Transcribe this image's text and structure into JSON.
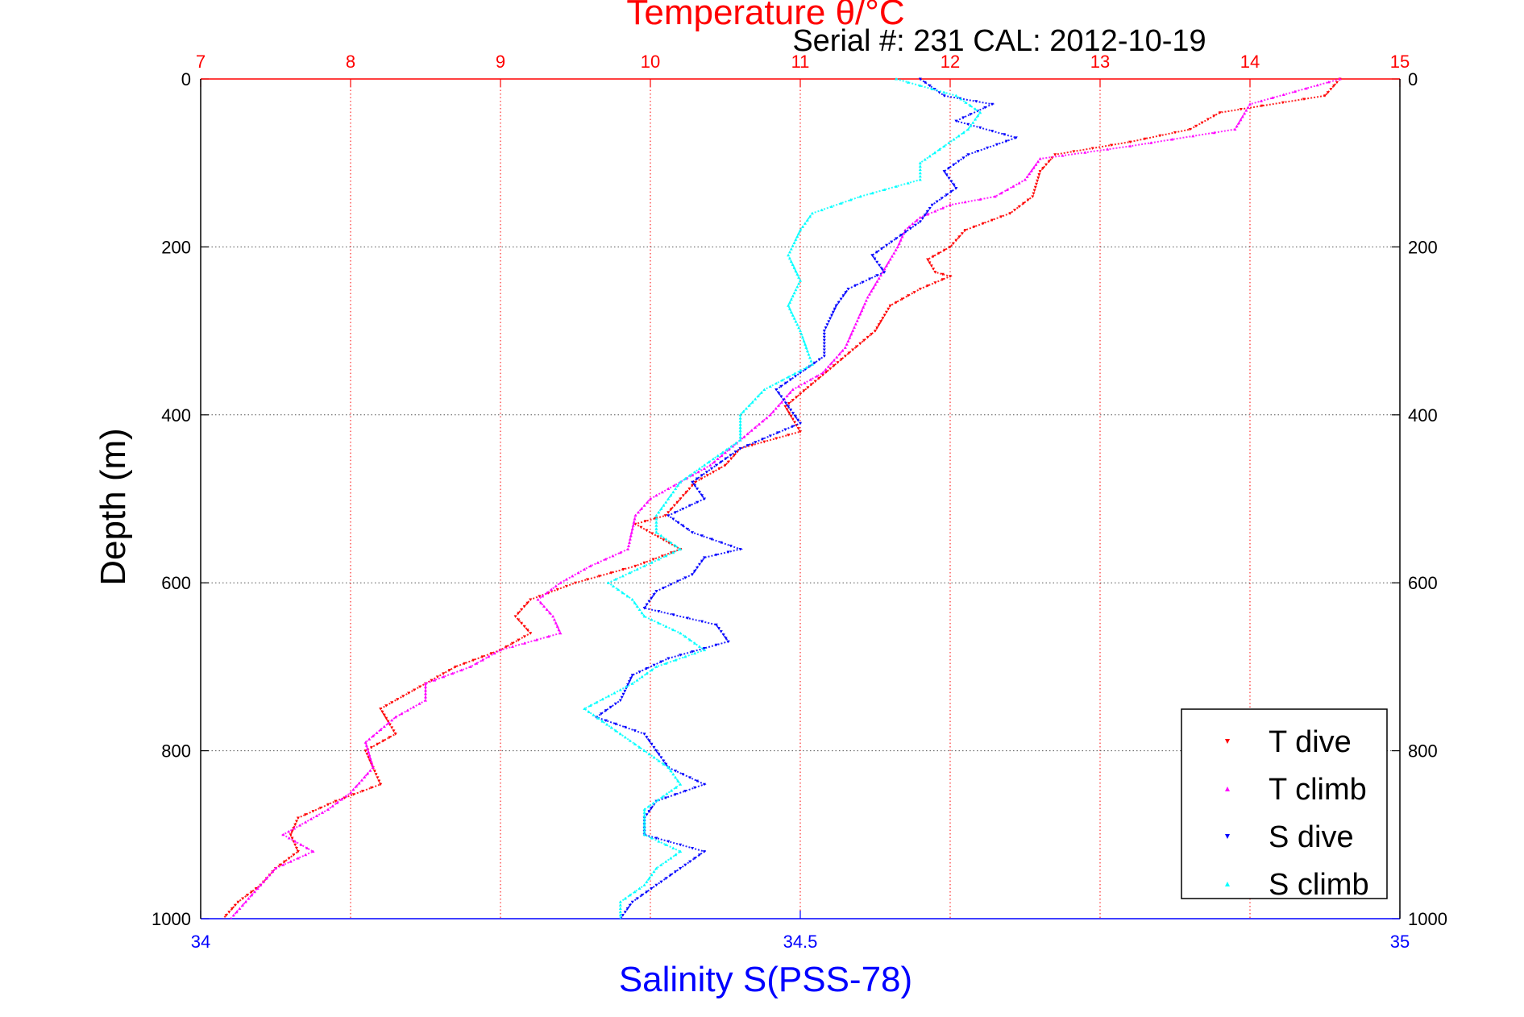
{
  "chart_data": {
    "type": "scatter",
    "title": "Temperature θ/°C",
    "subtitle": "Serial #: 231  CAL: 2012-10-19",
    "ylabel": "Depth (m)",
    "xlabel_bottom": "Salinity S(PSS-78)",
    "xlabel_top": "Temperature θ/°C",
    "ylim": [
      0,
      1000
    ],
    "y_inverted": true,
    "y_ticks": [
      "0",
      "200",
      "400",
      "600",
      "800",
      "1000"
    ],
    "x_top_lim": [
      7,
      15
    ],
    "x_top_ticks": [
      "7",
      "8",
      "9",
      "10",
      "11",
      "12",
      "13",
      "14",
      "15"
    ],
    "x_bottom_lim": [
      34,
      35
    ],
    "x_bottom_ticks": [
      "34",
      "34.5",
      "35"
    ],
    "grid": true,
    "legend_position": "bottom-right",
    "colors": {
      "temp_axis": "#ff0000",
      "sal_axis": "#0000ff",
      "t_dive": "#ff0000",
      "t_climb": "#ff00ff",
      "s_dive": "#0000ff",
      "s_climb": "#00ffff"
    },
    "series": [
      {
        "name": "T dive",
        "axis": "temperature",
        "color": "#ff0000",
        "points": [
          [
            14.6,
            0
          ],
          [
            14.5,
            20
          ],
          [
            13.8,
            40
          ],
          [
            13.6,
            60
          ],
          [
            13.2,
            75
          ],
          [
            12.7,
            90
          ],
          [
            12.6,
            110
          ],
          [
            12.55,
            140
          ],
          [
            12.4,
            160
          ],
          [
            12.1,
            180
          ],
          [
            12.0,
            200
          ],
          [
            11.85,
            215
          ],
          [
            11.9,
            230
          ],
          [
            12.0,
            235
          ],
          [
            11.8,
            250
          ],
          [
            11.6,
            270
          ],
          [
            11.5,
            300
          ],
          [
            11.3,
            330
          ],
          [
            11.1,
            360
          ],
          [
            10.9,
            390
          ],
          [
            11.0,
            420
          ],
          [
            10.6,
            440
          ],
          [
            10.5,
            460
          ],
          [
            10.3,
            480
          ],
          [
            10.2,
            500
          ],
          [
            10.1,
            520
          ],
          [
            9.9,
            530
          ],
          [
            10.2,
            560
          ],
          [
            9.9,
            580
          ],
          [
            9.5,
            600
          ],
          [
            9.2,
            620
          ],
          [
            9.1,
            640
          ],
          [
            9.2,
            660
          ],
          [
            9.0,
            680
          ],
          [
            8.7,
            700
          ],
          [
            8.5,
            720
          ],
          [
            8.2,
            750
          ],
          [
            8.3,
            780
          ],
          [
            8.1,
            800
          ],
          [
            8.2,
            840
          ],
          [
            7.9,
            860
          ],
          [
            7.65,
            880
          ],
          [
            7.6,
            900
          ],
          [
            7.65,
            920
          ],
          [
            7.5,
            940
          ],
          [
            7.4,
            960
          ],
          [
            7.25,
            980
          ],
          [
            7.15,
            1000
          ]
        ]
      },
      {
        "name": "T climb",
        "axis": "temperature",
        "color": "#ff00ff",
        "points": [
          [
            14.6,
            0
          ],
          [
            14.0,
            30
          ],
          [
            13.9,
            60
          ],
          [
            13.2,
            80
          ],
          [
            12.6,
            95
          ],
          [
            12.5,
            120
          ],
          [
            12.3,
            140
          ],
          [
            12.0,
            150
          ],
          [
            11.8,
            165
          ],
          [
            11.7,
            180
          ],
          [
            11.65,
            200
          ],
          [
            11.55,
            230
          ],
          [
            11.45,
            260
          ],
          [
            11.4,
            280
          ],
          [
            11.3,
            320
          ],
          [
            11.15,
            350
          ],
          [
            10.95,
            370
          ],
          [
            10.8,
            400
          ],
          [
            10.6,
            430
          ],
          [
            10.4,
            460
          ],
          [
            10.2,
            480
          ],
          [
            10.0,
            500
          ],
          [
            9.9,
            520
          ],
          [
            9.85,
            560
          ],
          [
            9.6,
            580
          ],
          [
            9.4,
            600
          ],
          [
            9.25,
            620
          ],
          [
            9.35,
            640
          ],
          [
            9.4,
            660
          ],
          [
            9.0,
            680
          ],
          [
            8.8,
            700
          ],
          [
            8.5,
            720
          ],
          [
            8.5,
            740
          ],
          [
            8.3,
            760
          ],
          [
            8.1,
            790
          ],
          [
            8.15,
            820
          ],
          [
            8.0,
            850
          ],
          [
            7.85,
            870
          ],
          [
            7.55,
            900
          ],
          [
            7.75,
            920
          ],
          [
            7.5,
            940
          ],
          [
            7.4,
            960
          ],
          [
            7.3,
            980
          ],
          [
            7.2,
            1000
          ]
        ]
      },
      {
        "name": "S dive",
        "axis": "salinity",
        "color": "#0000ff",
        "points": [
          [
            34.6,
            0
          ],
          [
            34.62,
            20
          ],
          [
            34.66,
            30
          ],
          [
            34.63,
            50
          ],
          [
            34.68,
            70
          ],
          [
            34.64,
            90
          ],
          [
            34.62,
            110
          ],
          [
            34.63,
            130
          ],
          [
            34.61,
            150
          ],
          [
            34.6,
            170
          ],
          [
            34.58,
            190
          ],
          [
            34.56,
            210
          ],
          [
            34.57,
            230
          ],
          [
            34.54,
            250
          ],
          [
            34.53,
            270
          ],
          [
            34.52,
            300
          ],
          [
            34.52,
            330
          ],
          [
            34.5,
            350
          ],
          [
            34.48,
            370
          ],
          [
            34.49,
            390
          ],
          [
            34.5,
            410
          ],
          [
            34.45,
            440
          ],
          [
            34.43,
            460
          ],
          [
            34.41,
            480
          ],
          [
            34.42,
            500
          ],
          [
            34.39,
            520
          ],
          [
            34.41,
            540
          ],
          [
            34.45,
            560
          ],
          [
            34.42,
            570
          ],
          [
            34.41,
            590
          ],
          [
            34.38,
            610
          ],
          [
            34.37,
            630
          ],
          [
            34.43,
            650
          ],
          [
            34.44,
            670
          ],
          [
            34.39,
            690
          ],
          [
            34.36,
            710
          ],
          [
            34.35,
            740
          ],
          [
            34.33,
            760
          ],
          [
            34.37,
            780
          ],
          [
            34.38,
            800
          ],
          [
            34.39,
            820
          ],
          [
            34.42,
            840
          ],
          [
            34.38,
            860
          ],
          [
            34.37,
            880
          ],
          [
            34.37,
            900
          ],
          [
            34.42,
            920
          ],
          [
            34.4,
            940
          ],
          [
            34.38,
            960
          ],
          [
            34.36,
            980
          ],
          [
            34.35,
            1000
          ]
        ]
      },
      {
        "name": "S climb",
        "axis": "salinity",
        "color": "#00ffff",
        "points": [
          [
            34.58,
            0
          ],
          [
            34.63,
            20
          ],
          [
            34.65,
            40
          ],
          [
            34.64,
            60
          ],
          [
            34.62,
            80
          ],
          [
            34.6,
            100
          ],
          [
            34.6,
            120
          ],
          [
            34.55,
            140
          ],
          [
            34.51,
            160
          ],
          [
            34.5,
            180
          ],
          [
            34.49,
            210
          ],
          [
            34.5,
            240
          ],
          [
            34.49,
            270
          ],
          [
            34.5,
            300
          ],
          [
            34.51,
            340
          ],
          [
            34.47,
            370
          ],
          [
            34.45,
            400
          ],
          [
            34.45,
            430
          ],
          [
            34.42,
            460
          ],
          [
            34.4,
            480
          ],
          [
            34.39,
            500
          ],
          [
            34.38,
            520
          ],
          [
            34.38,
            540
          ],
          [
            34.4,
            560
          ],
          [
            34.37,
            580
          ],
          [
            34.34,
            600
          ],
          [
            34.36,
            620
          ],
          [
            34.37,
            640
          ],
          [
            34.4,
            660
          ],
          [
            34.42,
            680
          ],
          [
            34.38,
            700
          ],
          [
            34.36,
            720
          ],
          [
            34.32,
            750
          ],
          [
            34.35,
            780
          ],
          [
            34.37,
            800
          ],
          [
            34.39,
            820
          ],
          [
            34.4,
            840
          ],
          [
            34.37,
            870
          ],
          [
            34.37,
            900
          ],
          [
            34.4,
            920
          ],
          [
            34.38,
            940
          ],
          [
            34.37,
            960
          ],
          [
            34.35,
            980
          ],
          [
            34.35,
            1000
          ]
        ]
      }
    ]
  }
}
